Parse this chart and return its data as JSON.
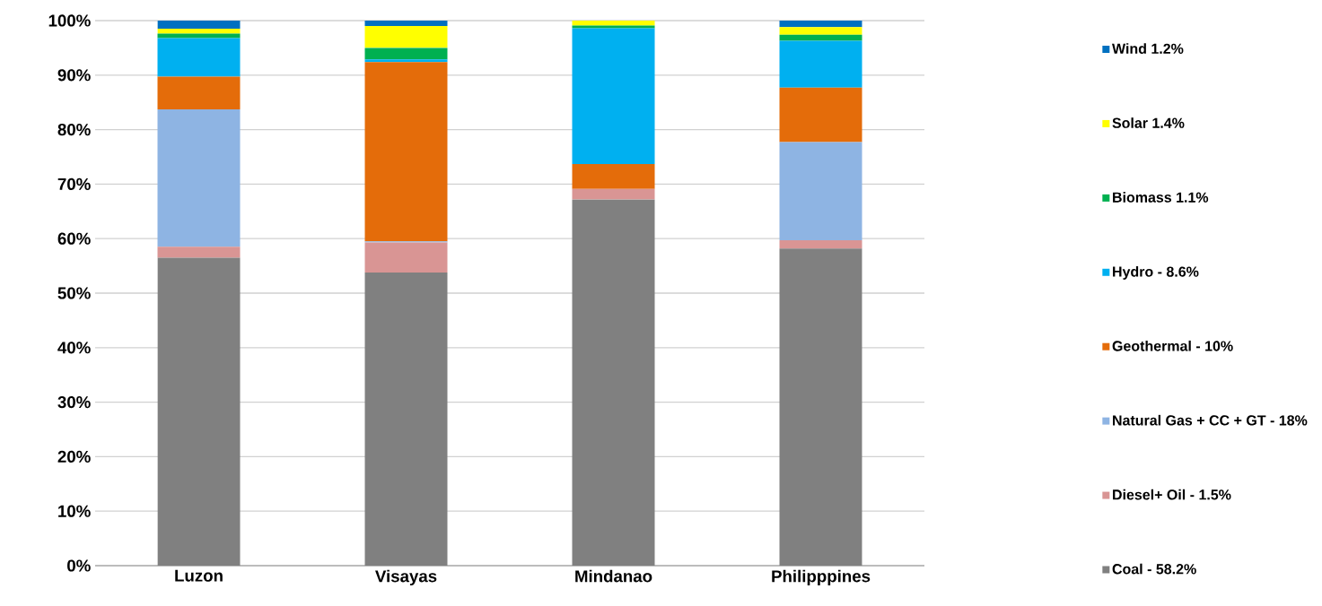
{
  "chart_data": {
    "type": "bar",
    "stacked": true,
    "categories": [
      "Luzon",
      "Visayas",
      "Mindanao",
      "Philipppines"
    ],
    "series": [
      {
        "name": "Coal - 58.2%",
        "color": "#808080",
        "values": [
          56.5,
          53.8,
          67.2,
          58.2
        ]
      },
      {
        "name": "Diesel+ Oil - 1.5%",
        "color": "#d99594",
        "values": [
          2.0,
          5.5,
          1.9,
          1.5
        ]
      },
      {
        "name": "Natural Gas + CC + GT - 18%",
        "color": "#8eb4e3",
        "values": [
          25.2,
          0.2,
          0,
          18
        ]
      },
      {
        "name": "Geothermal - 10%",
        "color": "#e46c0a",
        "values": [
          6.0,
          32.9,
          4.6,
          10
        ]
      },
      {
        "name": "Hydro - 8.6%",
        "color": "#00b0f0",
        "values": [
          7.1,
          0.5,
          24.9,
          8.6
        ]
      },
      {
        "name": "Biomass 1.1%",
        "color": "#00b050",
        "values": [
          0.8,
          2.1,
          0.5,
          1.1
        ]
      },
      {
        "name": "Solar 1.4%",
        "color": "#ffff00",
        "values": [
          0.9,
          4.0,
          0.9,
          1.4
        ]
      },
      {
        "name": "Wind 1.2%",
        "color": "#0070c0",
        "values": [
          1.5,
          1.0,
          0,
          1.2
        ]
      }
    ],
    "ylim": [
      0,
      100
    ],
    "yticks": [
      {
        "value": 0,
        "label": "0%"
      },
      {
        "value": 10,
        "label": "10%"
      },
      {
        "value": 20,
        "label": "20%"
      },
      {
        "value": 30,
        "label": "30%"
      },
      {
        "value": 40,
        "label": "40%"
      },
      {
        "value": 50,
        "label": "50%"
      },
      {
        "value": 60,
        "label": "60%"
      },
      {
        "value": 70,
        "label": "70%"
      },
      {
        "value": 80,
        "label": "80%"
      },
      {
        "value": 90,
        "label": "90%"
      },
      {
        "value": 100,
        "label": "100%"
      }
    ],
    "grid": "y",
    "legend": "right"
  }
}
